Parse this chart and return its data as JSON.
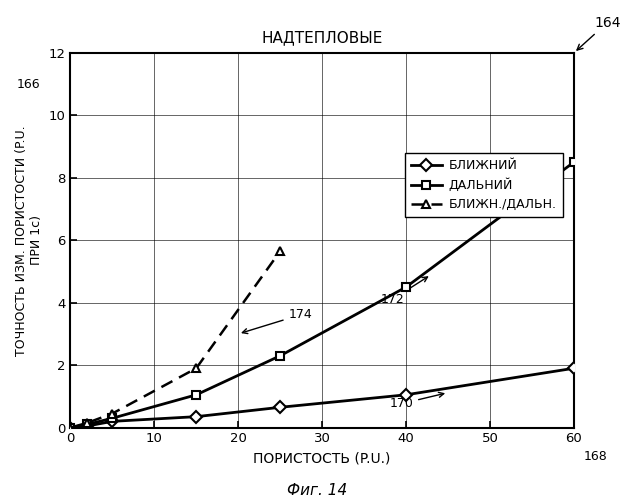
{
  "title": "НАДТЕПЛОВЫЕ",
  "xlabel": "ПОРИСТОСТЬ (P.U.)",
  "ylabel": "ТОЧНОСТЬ ИЗМ. ПОРИСТОСТИ (P.U.\nПРИ 1с)",
  "xlim": [
    0,
    60
  ],
  "ylim": [
    0,
    12
  ],
  "xticks": [
    0,
    10,
    20,
    30,
    40,
    50,
    60
  ],
  "yticks": [
    0,
    2,
    4,
    6,
    8,
    10,
    12
  ],
  "near_x": [
    0,
    2,
    5,
    15,
    25,
    40,
    60
  ],
  "near_y": [
    0,
    0.05,
    0.2,
    0.35,
    0.65,
    1.05,
    1.9
  ],
  "far_x": [
    0,
    2,
    5,
    15,
    25,
    40,
    60
  ],
  "far_y": [
    0,
    0.1,
    0.3,
    1.05,
    2.3,
    4.5,
    8.5
  ],
  "ratio_x": [
    0,
    2,
    5,
    15,
    25
  ],
  "ratio_y": [
    0,
    0.15,
    0.45,
    1.9,
    5.65
  ],
  "legend_near": "БЛИЖНИЙ",
  "legend_far": "ДАЛЬНИЙ",
  "legend_ratio": "БЛИЖН./ДАЛЬН.",
  "label_164": "164",
  "label_166": "166",
  "label_168": "168",
  "label_170": "170",
  "label_172": "172",
  "label_174": "174",
  "fig_caption": "Фиг. 14",
  "bg_color": "#ffffff",
  "line_color": "#000000"
}
